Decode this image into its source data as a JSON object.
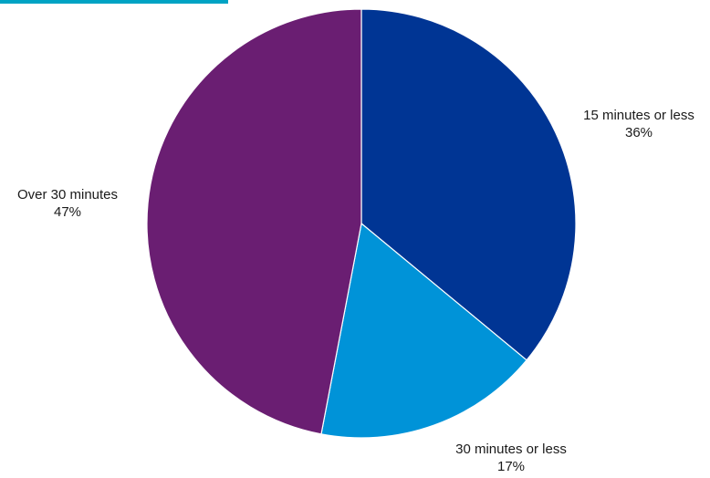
{
  "chart_data": {
    "type": "pie",
    "title": "",
    "start_angle_deg": 0,
    "direction": "clockwise",
    "slices": [
      {
        "label": "15 minutes or less",
        "value": 36,
        "value_label": "36%",
        "color": "#003594"
      },
      {
        "label": "30 minutes or less",
        "value": 17,
        "value_label": "17%",
        "color": "#0093d8"
      },
      {
        "label": "Over 30 minutes",
        "value": 47,
        "value_label": "47%",
        "color": "#6a1e72"
      }
    ],
    "legend": "none",
    "slice_border_color": "#ffffff"
  }
}
